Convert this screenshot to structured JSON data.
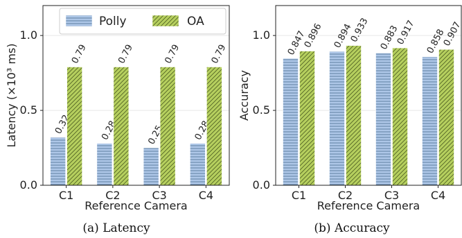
{
  "colors": {
    "polly_fill": "#aec7e8",
    "polly_hatch": "#4a6d8f",
    "oa_fill": "#b5cf5e",
    "oa_hatch": "#4f5f22",
    "grid": "#e6e6e6"
  },
  "legend": {
    "polly_label": "Polly",
    "oa_label": "OA"
  },
  "chart_data": [
    {
      "type": "bar",
      "categories": [
        "C1",
        "C2",
        "C3",
        "C4"
      ],
      "series": [
        {
          "name": "Polly",
          "values": [
            0.32,
            0.28,
            0.25,
            0.28
          ],
          "labels": [
            "0.32",
            "0.28",
            "0.25",
            "0.28"
          ]
        },
        {
          "name": "OA",
          "values": [
            0.79,
            0.79,
            0.79,
            0.79
          ],
          "labels": [
            "0.79",
            "0.79",
            "0.79",
            "0.79"
          ]
        }
      ],
      "xlabel": "Reference Camera",
      "ylabel": "Latency (×10³ ms)",
      "ylim": [
        0,
        1.2
      ],
      "yticks": [
        "0.0",
        "0.5",
        "1.0"
      ],
      "ytick_values": [
        0,
        0.5,
        1.0
      ],
      "grid": true,
      "legend_position": "top",
      "caption": "(a)  Latency"
    },
    {
      "type": "bar",
      "categories": [
        "C1",
        "C2",
        "C3",
        "C4"
      ],
      "series": [
        {
          "name": "Polly",
          "values": [
            0.847,
            0.894,
            0.883,
            0.858
          ],
          "labels": [
            "0.847",
            "0.894",
            "0.883",
            "0.858"
          ]
        },
        {
          "name": "OA",
          "values": [
            0.896,
            0.933,
            0.917,
            0.907
          ],
          "labels": [
            "0.896",
            "0.933",
            "0.917",
            "0.907"
          ]
        }
      ],
      "xlabel": "Reference Camera",
      "ylabel": "Accuracy",
      "ylim": [
        0,
        1.2
      ],
      "yticks": [
        "0.0",
        "0.5",
        "1.0"
      ],
      "ytick_values": [
        0,
        0.5,
        1.0
      ],
      "grid": true,
      "caption": "(b)  Accuracy"
    }
  ]
}
